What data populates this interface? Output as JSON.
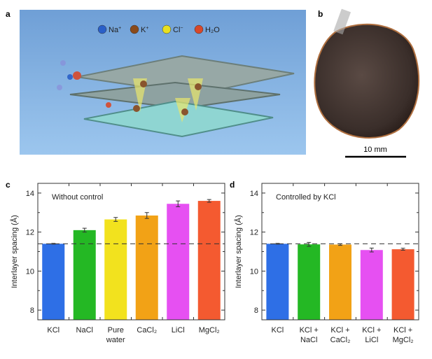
{
  "panel_a": {
    "label": "a",
    "legend": [
      {
        "symbol": "Na",
        "sup": "+",
        "color": "#2a5fc8"
      },
      {
        "symbol": "K",
        "sup": "+",
        "color": "#8a4a1a"
      },
      {
        "symbol": "Cl",
        "sup": "−",
        "color": "#e8e020"
      },
      {
        "symbol": "H₂O",
        "sup": "",
        "color": "#d8482a"
      }
    ]
  },
  "panel_b": {
    "label": "b",
    "scale_bar": "10 mm"
  },
  "colors": {
    "blue": "#2e6fe6",
    "green": "#24b824",
    "yellow": "#f2e21e",
    "orange": "#f2a216",
    "magenta": "#e650f2",
    "red": "#f45a30"
  },
  "chart_data": [
    {
      "panel_label": "c",
      "type": "bar",
      "annotation": "Without control",
      "ylabel": "Interlayer spacing (Å)",
      "ylim": [
        7.5,
        14.5
      ],
      "yticks": [
        8,
        10,
        12,
        14
      ],
      "reference_line": 11.4,
      "grid": false,
      "categories": [
        [
          "KCl"
        ],
        [
          "NaCl"
        ],
        [
          "Pure",
          "water"
        ],
        [
          "CaCl₂"
        ],
        [
          "LiCl"
        ],
        [
          "MgCl₂"
        ]
      ],
      "values": [
        11.4,
        12.1,
        12.65,
        12.85,
        13.45,
        13.6
      ],
      "errors": [
        0.02,
        0.1,
        0.1,
        0.15,
        0.15,
        0.07
      ],
      "bar_colors": [
        "#2e6fe6",
        "#24b824",
        "#f2e21e",
        "#f2a216",
        "#e650f2",
        "#f45a30"
      ]
    },
    {
      "panel_label": "d",
      "type": "bar",
      "annotation": "Controlled by KCl",
      "ylabel": "Interlayer spacing (Å)",
      "ylim": [
        7.5,
        14.5
      ],
      "yticks": [
        8,
        10,
        12,
        14
      ],
      "reference_line": 11.4,
      "grid": false,
      "categories": [
        [
          "KCl"
        ],
        [
          "KCl +",
          "NaCl"
        ],
        [
          "KCl +",
          "CaCl₂"
        ],
        [
          "KCl +",
          "LiCl"
        ],
        [
          "KCl +",
          "MgCl₂"
        ]
      ],
      "values": [
        11.4,
        11.37,
        11.36,
        11.08,
        11.12
      ],
      "errors": [
        0.02,
        0.1,
        0.04,
        0.1,
        0.05
      ],
      "bar_colors": [
        "#2e6fe6",
        "#24b824",
        "#f2a216",
        "#e650f2",
        "#f45a30"
      ]
    }
  ]
}
